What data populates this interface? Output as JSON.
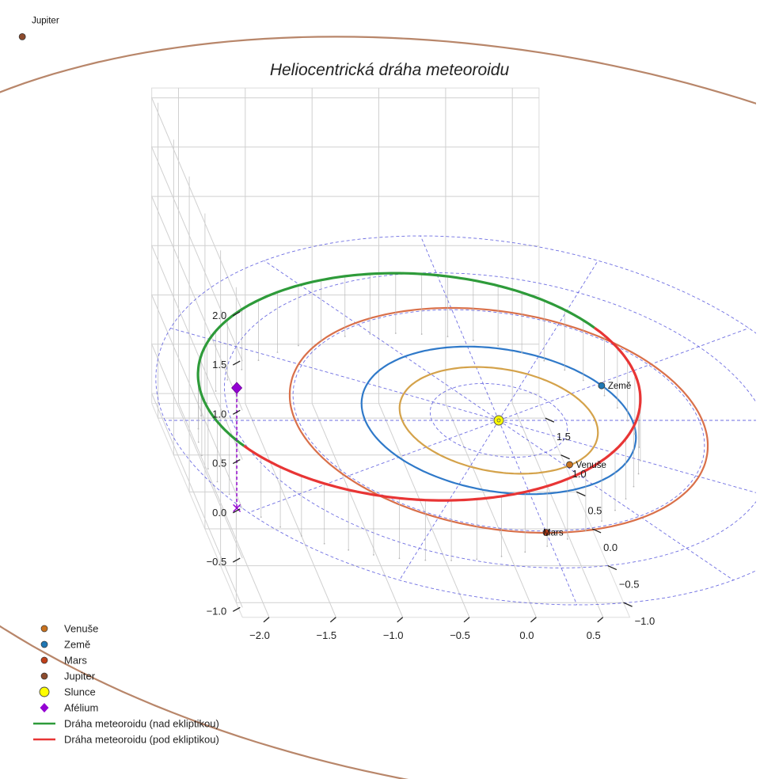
{
  "chart_data": {
    "type": "line3d",
    "title": "Heliocentrická dráha meteoroidu",
    "axes": {
      "x": {
        "ticks": [
          -2.0,
          -1.5,
          -1.0,
          -0.5,
          0.0,
          0.5
        ],
        "tick_labels": [
          "−2.0",
          "−1.5",
          "−1.0",
          "−0.5",
          "0.0",
          "0.5"
        ],
        "range": [
          -2.2,
          0.7
        ]
      },
      "y": {
        "ticks": [
          -1.0,
          -0.5,
          0.0,
          0.5,
          1.0,
          1.5
        ],
        "tick_labels": [
          "−1.0",
          "−0.5",
          "0.0",
          "0.5",
          "1.0",
          "1.5"
        ],
        "range": [
          -1.2,
          1.7
        ]
      },
      "z": {
        "ticks": [
          -1.0,
          -0.5,
          0.0,
          0.5,
          1.0,
          1.5,
          2.0
        ],
        "tick_labels": [
          "−1.0",
          "−0.5",
          "0.0",
          "0.5",
          "1.0",
          "1.5",
          "2.0"
        ],
        "range": [
          -1.1,
          2.1
        ]
      }
    },
    "ecliptic_grid": {
      "style": "dashed",
      "color": "#5555dd",
      "circle_radii_au": [
        0.5,
        1.0,
        1.5,
        2.0,
        2.5
      ]
    },
    "planet_orbits": [
      {
        "name": "Venuše",
        "radius_au": 0.723,
        "color": "#d4a24a"
      },
      {
        "name": "Země",
        "radius_au": 1.0,
        "color": "#2f79c9"
      },
      {
        "name": "Mars",
        "radius_au": 1.524,
        "color": "#d9704a"
      },
      {
        "name": "Jupiter",
        "radius_au": 5.2,
        "color": "#b8866a"
      }
    ],
    "planets": [
      {
        "name": "Venuše",
        "label": "Venuše",
        "position_au": [
          0.39,
          -0.6,
          0.0
        ],
        "color": "#c8721e"
      },
      {
        "name": "Země",
        "label": "Země",
        "position_au": [
          0.88,
          0.47,
          0.0
        ],
        "color": "#1f77b4"
      },
      {
        "name": "Mars",
        "label": "Mars",
        "position_au": [
          0.0,
          -1.52,
          0.0
        ],
        "color": "#c0401a"
      },
      {
        "name": "Jupiter",
        "label": "Jupiter",
        "position_au": [
          -2.35,
          5.2,
          0.0
        ],
        "color": "#8c4b2d"
      }
    ],
    "sun": {
      "name": "Slunce",
      "position_au": [
        0,
        0,
        0
      ],
      "color": "#ffff00"
    },
    "meteoroid_orbit": {
      "a_au": 1.7,
      "e": 0.48,
      "perihelion_au": [
        0.88,
        0.47,
        0.0
      ],
      "aphelion_au": [
        -2.24,
        -1.19,
        1.22
      ],
      "aphelion_projection_au": [
        -2.24,
        -1.19,
        0.0
      ]
    },
    "aphelion": {
      "name": "Afélium",
      "color": "#9400d3"
    },
    "series": [
      {
        "name": "Dráha meteoroidu (nad ekliptikou)",
        "color": "#2e9b3a"
      },
      {
        "name": "Dráha meteoroidu (pod ekliptikou)",
        "color": "#e83535"
      }
    ],
    "legend": {
      "position": "bottom-left",
      "entries": [
        {
          "label": "Venuše",
          "marker": "dot",
          "color": "#c8721e"
        },
        {
          "label": "Země",
          "marker": "dot",
          "color": "#1f77b4"
        },
        {
          "label": "Mars",
          "marker": "dot",
          "color": "#c0401a"
        },
        {
          "label": "Jupiter",
          "marker": "dot",
          "color": "#8c4b2d"
        },
        {
          "label": "Slunce",
          "marker": "dot-large",
          "color": "#ffff00"
        },
        {
          "label": "Afélium",
          "marker": "diamond",
          "color": "#9400d3"
        },
        {
          "label": "Dráha meteoroidu (nad ekliptikou)",
          "marker": "line",
          "color": "#2e9b3a"
        },
        {
          "label": "Dráha meteoroidu (pod ekliptikou)",
          "marker": "line",
          "color": "#e83535"
        }
      ]
    }
  }
}
